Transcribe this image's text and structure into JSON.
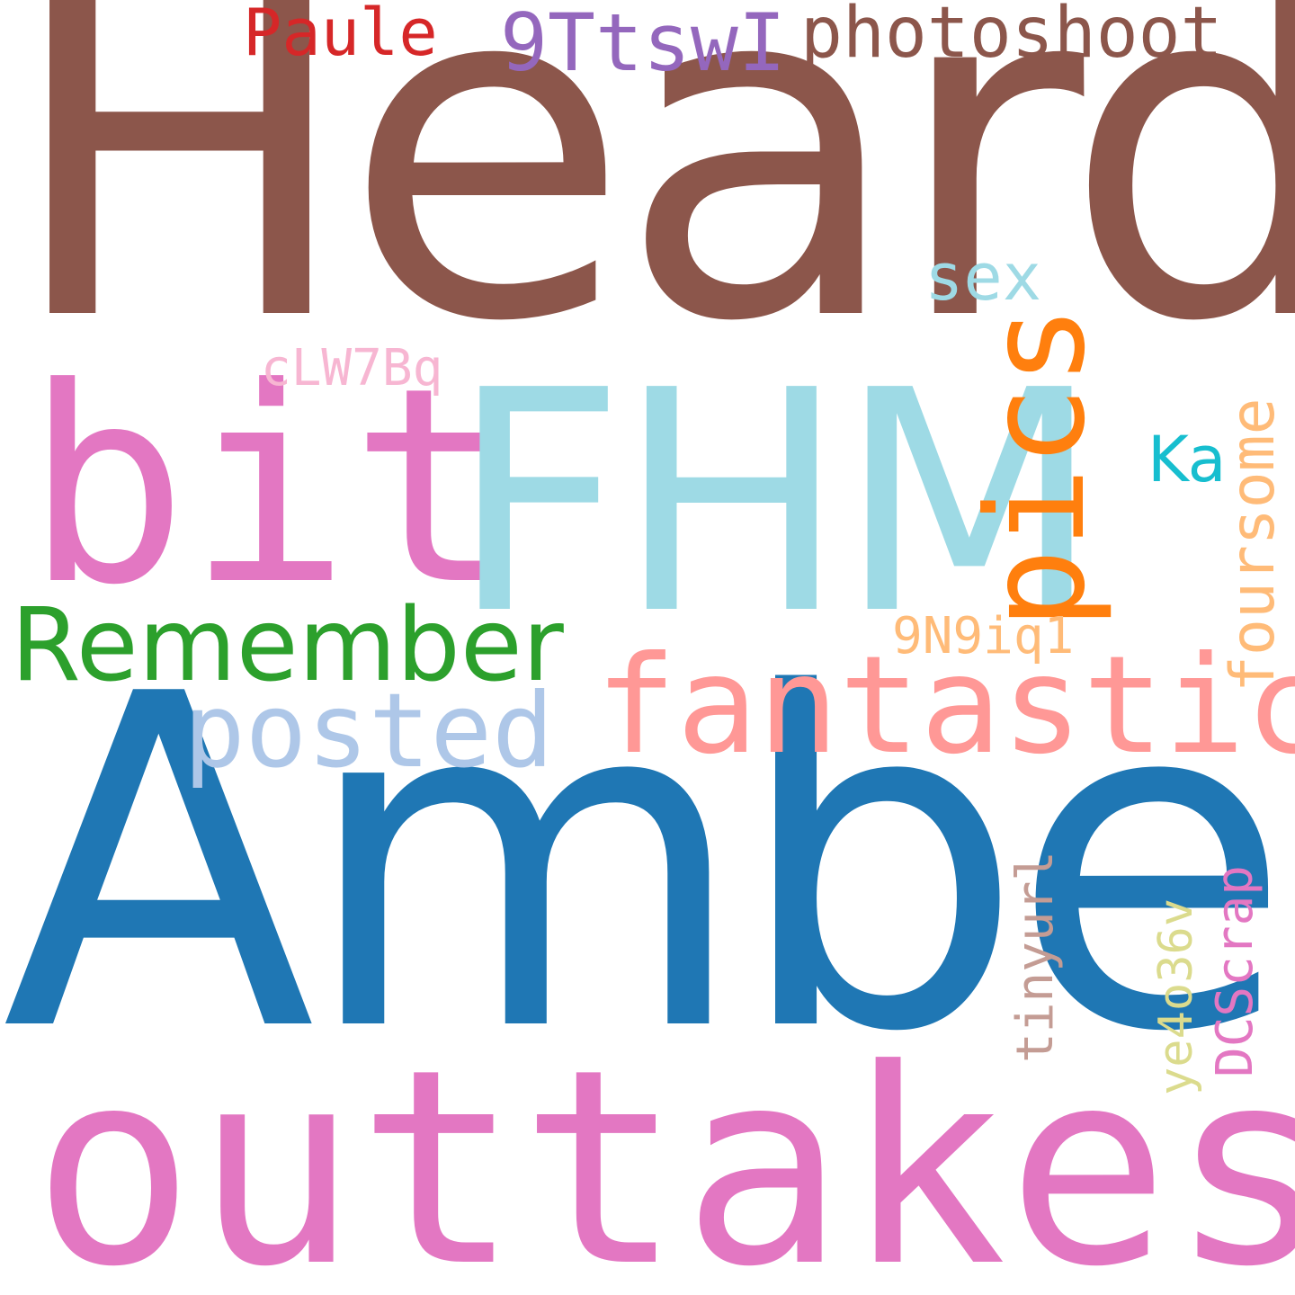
{
  "words": {
    "heard": {
      "text": "Heard",
      "color": "#8c564b"
    },
    "amber": {
      "text": "Amber",
      "color": "#1f77b4"
    },
    "outtakes": {
      "text": "outtakes",
      "color": "#e377c2"
    },
    "fhm": {
      "text": "FHM",
      "color": "#9edae5"
    },
    "bit": {
      "text": "bit",
      "color": "#e377c2"
    },
    "fantastic": {
      "text": "fantastic",
      "color": "#ff9896"
    },
    "pics": {
      "text": "pics",
      "color": "#ff7f0e"
    },
    "remember": {
      "text": "Remember",
      "color": "#2ca02c"
    },
    "posted": {
      "text": "posted",
      "color": "#aec7e8"
    },
    "photoshoot": {
      "text": "photoshoot",
      "color": "#8c564b"
    },
    "9ttswi": {
      "text": "9TtswI",
      "color": "#9467bd"
    },
    "paule": {
      "text": "Paule",
      "color": "#d62728"
    },
    "foursome": {
      "text": "foursome",
      "color": "#ffbb78"
    },
    "sex": {
      "text": "sex",
      "color": "#9edae5"
    },
    "ka": {
      "text": "Ka",
      "color": "#17becf"
    },
    "clw7bq": {
      "text": "cLW7Bq",
      "color": "#f7b6d2"
    },
    "9n9iq1": {
      "text": "9N9iq1",
      "color": "#ffbb78"
    },
    "tinyurl": {
      "text": "tinyurl",
      "color": "#c49c94"
    },
    "ye4o36v": {
      "text": "ye4o36v",
      "color": "#dbdb8d"
    },
    "dcscrap": {
      "text": "DCScrap",
      "color": "#e377c2"
    }
  }
}
